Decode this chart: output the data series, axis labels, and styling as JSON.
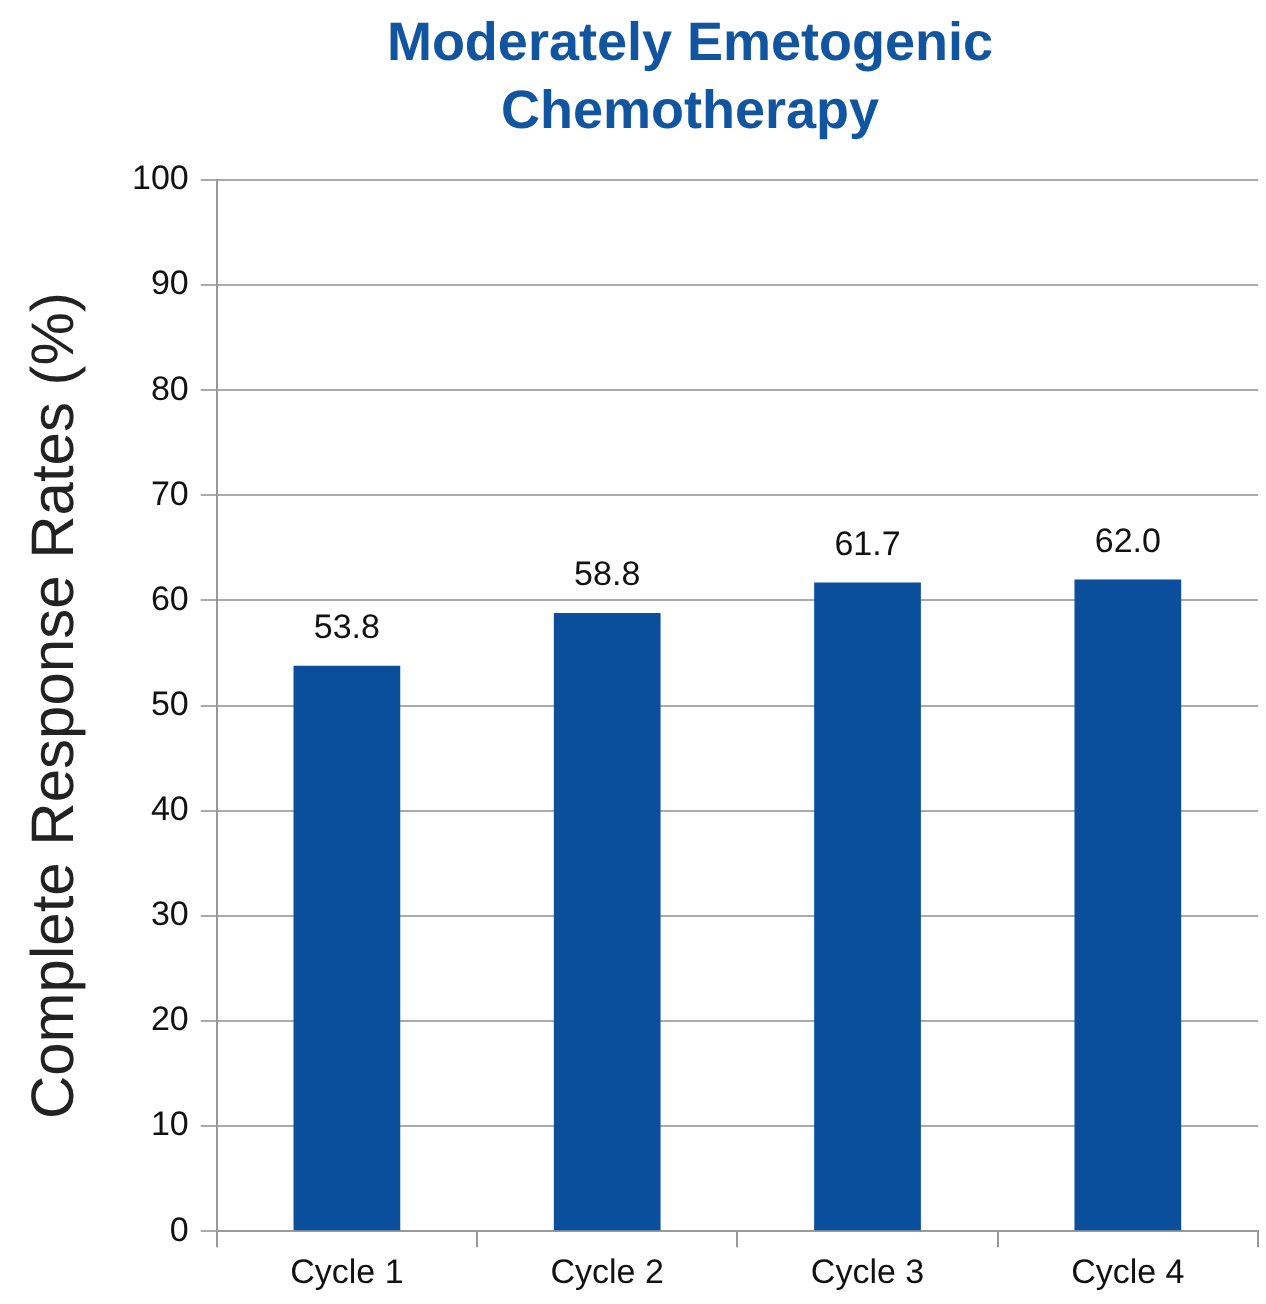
{
  "chart_data": {
    "type": "bar",
    "title": "Moderately Emetogenic Chemotherapy",
    "ylabel": "Complete Response Rates (%)",
    "categories": [
      "Cycle 1",
      "Cycle 2",
      "Cycle 3",
      "Cycle 4"
    ],
    "values": [
      53.8,
      58.8,
      61.7,
      62.0
    ],
    "value_labels": [
      "53.8",
      "58.8",
      "61.7",
      "62.0"
    ],
    "color": "#0b4f9c",
    "ylim": [
      0,
      100
    ],
    "yticks": [
      0,
      10,
      20,
      30,
      40,
      50,
      60,
      70,
      80,
      90,
      100
    ],
    "grid": "y",
    "legend": false
  }
}
